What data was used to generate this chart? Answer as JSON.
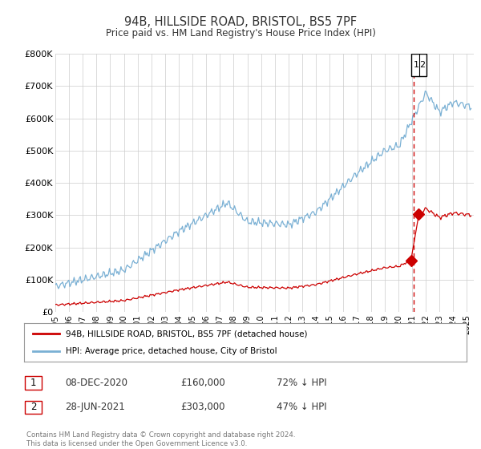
{
  "title": "94B, HILLSIDE ROAD, BRISTOL, BS5 7PF",
  "subtitle": "Price paid vs. HM Land Registry's House Price Index (HPI)",
  "title_color": "#333333",
  "bg_color": "#ffffff",
  "plot_bg_color": "#ffffff",
  "grid_color": "#cccccc",
  "red_color": "#cc0000",
  "blue_color": "#7ab0d4",
  "xmin": 1995.0,
  "xmax": 2025.5,
  "ymin": 0,
  "ymax": 800000,
  "yticks": [
    0,
    100000,
    200000,
    300000,
    400000,
    500000,
    600000,
    700000,
    800000
  ],
  "ytick_labels": [
    "£0",
    "£100K",
    "£200K",
    "£300K",
    "£400K",
    "£500K",
    "£600K",
    "£700K",
    "£800K"
  ],
  "xticks": [
    1995,
    1996,
    1997,
    1998,
    1999,
    2000,
    2001,
    2002,
    2003,
    2004,
    2005,
    2006,
    2007,
    2008,
    2009,
    2010,
    2011,
    2012,
    2013,
    2014,
    2015,
    2016,
    2017,
    2018,
    2019,
    2020,
    2021,
    2022,
    2023,
    2024,
    2025
  ],
  "sale1_date": 2020.92,
  "sale1_price": 160000,
  "sale1_label": "08-DEC-2020",
  "sale1_pct": "72% ↓ HPI",
  "sale2_date": 2021.49,
  "sale2_price": 303000,
  "sale2_label": "28-JUN-2021",
  "sale2_pct": "47% ↓ HPI",
  "legend_label_red": "94B, HILLSIDE ROAD, BRISTOL, BS5 7PF (detached house)",
  "legend_label_blue": "HPI: Average price, detached house, City of Bristol",
  "footer": "Contains HM Land Registry data © Crown copyright and database right 2024.\nThis data is licensed under the Open Government Licence v3.0.",
  "vline_x": 2021.1
}
